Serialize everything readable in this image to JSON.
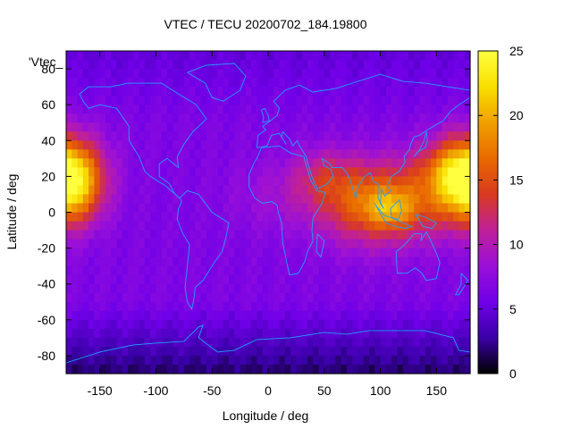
{
  "chart_data": {
    "type": "heatmap",
    "title": "VTEC / TECU 20200702_184.19800",
    "xlabel": "Longitude / deg",
    "ylabel": "Latitude / deg",
    "series_label": "'Vtec_",
    "xlim": [
      -180,
      180
    ],
    "ylim": [
      -90,
      90
    ],
    "x_ticks": [
      -150,
      -100,
      -50,
      0,
      50,
      100,
      150
    ],
    "y_ticks": [
      80,
      60,
      40,
      20,
      0,
      -20,
      -40,
      -60,
      -80
    ],
    "colorbar": {
      "range": [
        0,
        25
      ],
      "ticks": [
        0,
        5,
        10,
        15,
        20,
        25
      ],
      "palette": [
        "#000000",
        "#3a00a8",
        "#7000e8",
        "#9a10d8",
        "#c02098",
        "#d83a20",
        "#e96a00",
        "#f0a000",
        "#f8e000",
        "#ffff40"
      ]
    },
    "grid": false,
    "overlay": "coastlines",
    "blobs": [
      {
        "lon": -180,
        "lat": 18,
        "val": 21,
        "slon": 30,
        "slat": 22
      },
      {
        "lon": 100,
        "lat": 5,
        "val": 11,
        "slon": 55,
        "slat": 22
      },
      {
        "lon": 110,
        "lat": 2,
        "val": 4.5,
        "slon": 22,
        "slat": 10
      },
      {
        "lon": 50,
        "lat": 20,
        "val": 4,
        "slon": 30,
        "slat": 15
      },
      {
        "lon": 150,
        "lat": 25,
        "val": 3,
        "slon": 30,
        "slat": 15
      },
      {
        "lon": 0,
        "lat": 10,
        "val": 1.5,
        "slon": 40,
        "slat": 20
      }
    ],
    "base_value": 6.5,
    "polar_low_value": 2.5
  }
}
